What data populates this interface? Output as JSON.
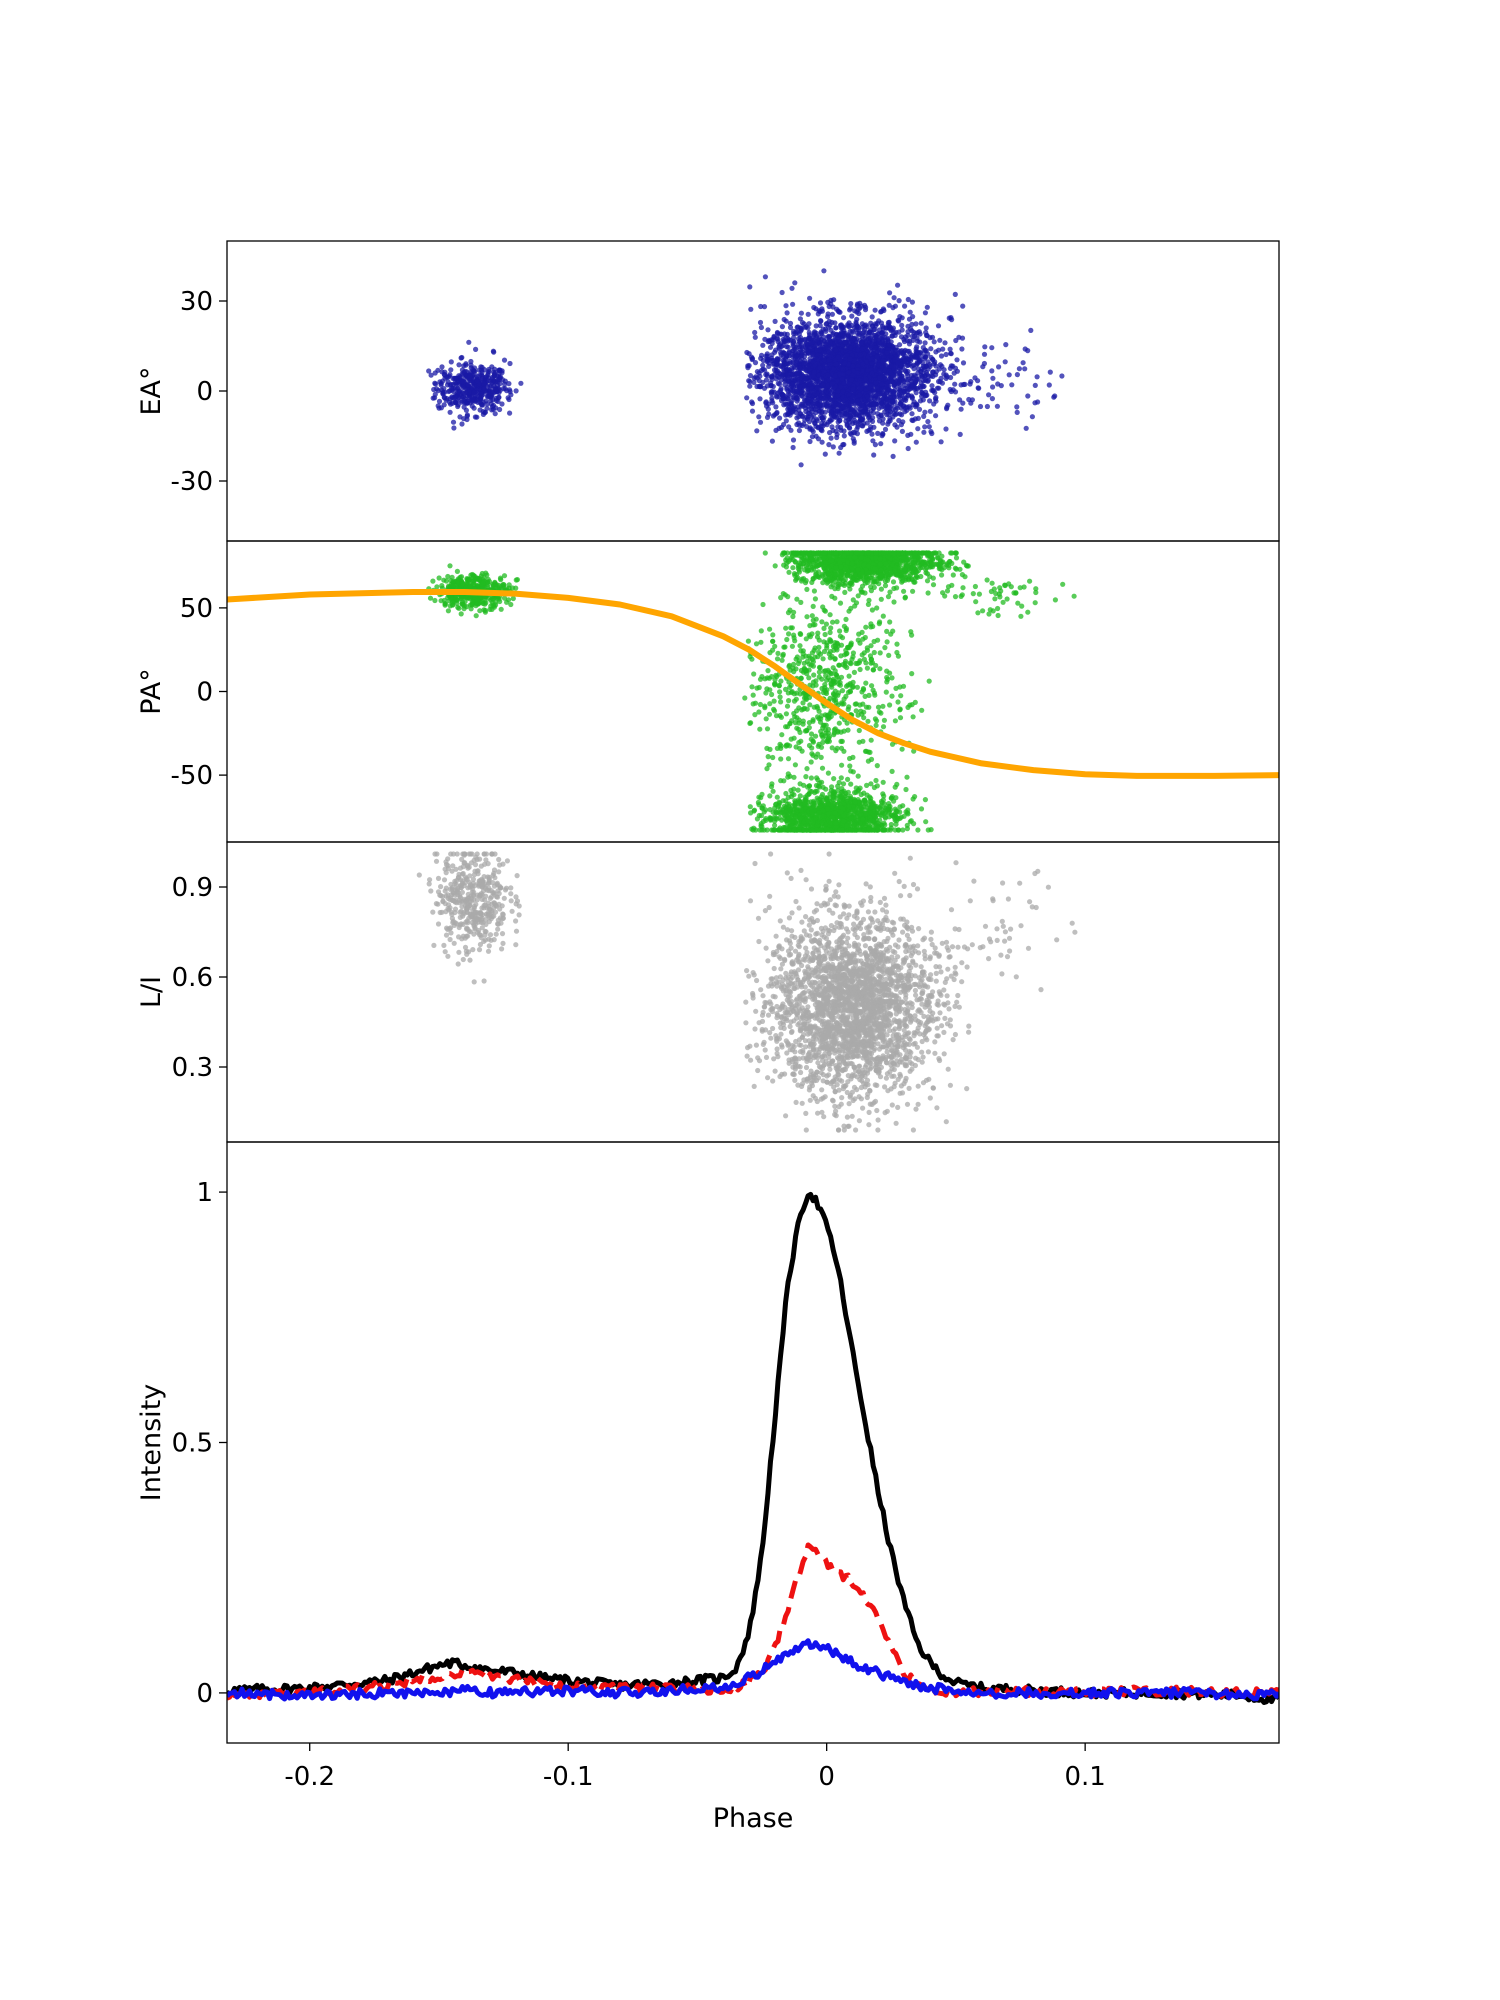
{
  "chart_data": [
    {
      "panel": "EA",
      "type": "scatter",
      "ylabel": "EA°",
      "xlim": [
        -0.232,
        0.175
      ],
      "ylim": [
        -50,
        50
      ],
      "yticks": [
        30,
        0,
        -30
      ],
      "ytick_labels": [
        "30",
        "0",
        "-30"
      ],
      "point_color": "#1a1aa6",
      "clusters": [
        {
          "x_range": [
            -0.158,
            -0.112
          ],
          "x_center": -0.137,
          "x_sd": 0.007,
          "y_center": 1,
          "y_sd": 4,
          "count": 420
        },
        {
          "x_range": [
            -0.032,
            0.06
          ],
          "x_center": 0.008,
          "x_sd": 0.016,
          "y_center": 6,
          "y_sd": 9,
          "count": 3200
        },
        {
          "x_range": [
            0.04,
            0.098
          ],
          "x_center": 0.065,
          "x_sd": 0.015,
          "y_center": 6,
          "y_sd": 8,
          "count": 60
        }
      ]
    },
    {
      "panel": "PA",
      "type": "scatter",
      "ylabel": "PA°",
      "xlim": [
        -0.232,
        0.175
      ],
      "ylim": [
        -90,
        90
      ],
      "yticks": [
        50,
        0,
        -50
      ],
      "ytick_labels": [
        "50",
        "0",
        "-50"
      ],
      "point_color": "#22bb22",
      "clusters": [
        {
          "x_range": [
            -0.158,
            -0.112
          ],
          "x_center": -0.137,
          "x_sd": 0.007,
          "y_center": 60,
          "y_sd": 5,
          "count": 420
        },
        {
          "x_range": [
            -0.018,
            0.055
          ],
          "x_center": 0.015,
          "x_sd": 0.014,
          "y_center": 78,
          "y_sd": 7,
          "count": 1400
        },
        {
          "x_range": [
            -0.03,
            0.048
          ],
          "x_center": 0.002,
          "x_sd": 0.013,
          "y_center": -75,
          "y_sd": 8,
          "count": 1200
        },
        {
          "x_range": [
            -0.032,
            0.04
          ],
          "x_center": 0.0,
          "x_sd": 0.016,
          "y_center": 0,
          "y_sd": 30,
          "count": 700
        },
        {
          "x_range": [
            0.04,
            0.096
          ],
          "x_center": 0.065,
          "x_sd": 0.015,
          "y_center": 58,
          "y_sd": 6,
          "count": 50
        }
      ],
      "fit_curve": {
        "name": "",
        "color": "#ffa500",
        "x": [
          -0.232,
          -0.2,
          -0.16,
          -0.14,
          -0.12,
          -0.1,
          -0.08,
          -0.06,
          -0.04,
          -0.03,
          -0.02,
          -0.01,
          0,
          0.01,
          0.02,
          0.03,
          0.04,
          0.06,
          0.08,
          0.1,
          0.12,
          0.15,
          0.175
        ],
        "y": [
          55,
          58,
          59.5,
          59.5,
          58.5,
          56,
          52,
          45,
          33,
          25,
          15,
          4,
          -7,
          -17,
          -25,
          -31,
          -36,
          -43,
          -47,
          -49.5,
          -50.5,
          -50.5,
          -50
        ]
      }
    },
    {
      "panel": "L/I",
      "type": "scatter",
      "ylabel": "L/I",
      "xlim": [
        -0.232,
        0.175
      ],
      "ylim": [
        0.05,
        1.05
      ],
      "yticks": [
        0.9,
        0.6,
        0.3
      ],
      "ytick_labels": [
        "0.9",
        "0.6",
        "0.3"
      ],
      "point_color": "#aaaaaa",
      "clusters": [
        {
          "x_range": [
            -0.158,
            -0.112
          ],
          "x_center": -0.137,
          "x_sd": 0.007,
          "y_center": 0.86,
          "y_sd": 0.09,
          "count": 420
        },
        {
          "x_range": [
            -0.032,
            0.055
          ],
          "x_center": 0.01,
          "x_sd": 0.016,
          "y_center": 0.5,
          "y_sd": 0.15,
          "count": 2600
        },
        {
          "x_range": [
            0.04,
            0.098
          ],
          "x_center": 0.065,
          "x_sd": 0.015,
          "y_center": 0.75,
          "y_sd": 0.12,
          "count": 50
        }
      ]
    },
    {
      "panel": "Intensity",
      "type": "line",
      "ylabel": "Intensity",
      "xlabel": "Phase",
      "xlim": [
        -0.232,
        0.175
      ],
      "ylim": [
        -0.1,
        1.1
      ],
      "yticks": [
        1,
        0.5,
        0
      ],
      "ytick_labels": [
        "1",
        "0.5",
        "0"
      ],
      "xticks": [
        -0.2,
        -0.1,
        0,
        0.1
      ],
      "xtick_labels": [
        "-0.2",
        "-0.1",
        "0",
        "0.1"
      ],
      "series": [
        {
          "color": "#000000",
          "dash": "solid",
          "x": [
            -0.232,
            -0.2,
            -0.17,
            -0.16,
            -0.15,
            -0.145,
            -0.14,
            -0.13,
            -0.12,
            -0.11,
            -0.1,
            -0.08,
            -0.06,
            -0.05,
            -0.04,
            -0.035,
            -0.03,
            -0.025,
            -0.02,
            -0.015,
            -0.01,
            -0.007,
            -0.005,
            -0.002,
            0.002,
            0.005,
            0.01,
            0.015,
            0.02,
            0.025,
            0.03,
            0.035,
            0.04,
            0.045,
            0.05,
            0.06,
            0.08,
            0.1,
            0.13,
            0.16,
            0.175
          ],
          "y": [
            0.005,
            0.01,
            0.025,
            0.04,
            0.055,
            0.06,
            0.055,
            0.045,
            0.04,
            0.03,
            0.025,
            0.015,
            0.02,
            0.025,
            0.03,
            0.05,
            0.12,
            0.28,
            0.55,
            0.82,
            0.96,
            1.0,
            0.99,
            0.96,
            0.9,
            0.83,
            0.68,
            0.54,
            0.4,
            0.28,
            0.18,
            0.1,
            0.06,
            0.035,
            0.02,
            0.01,
            0.005,
            0.0,
            0.0,
            -0.005,
            -0.015
          ]
        },
        {
          "color": "#ee1111",
          "dash": "dashed",
          "x": [
            -0.232,
            -0.2,
            -0.17,
            -0.15,
            -0.14,
            -0.13,
            -0.12,
            -0.1,
            -0.08,
            -0.06,
            -0.04,
            -0.03,
            -0.025,
            -0.02,
            -0.015,
            -0.01,
            -0.007,
            -0.004,
            0.0,
            0.005,
            0.01,
            0.015,
            0.02,
            0.025,
            0.03,
            0.035,
            0.04,
            0.05,
            0.07,
            0.1,
            0.13,
            0.16,
            0.175
          ],
          "y": [
            -0.005,
            0.0,
            0.015,
            0.035,
            0.04,
            0.035,
            0.025,
            0.015,
            0.01,
            0.01,
            0.005,
            0.02,
            0.04,
            0.09,
            0.17,
            0.25,
            0.29,
            0.28,
            0.26,
            0.24,
            0.22,
            0.19,
            0.15,
            0.09,
            0.04,
            0.015,
            0.005,
            0.0,
            0.005,
            0.0,
            0.005,
            0.0,
            0.0
          ]
        },
        {
          "color": "#1111ee",
          "dash": "solid",
          "x": [
            -0.232,
            -0.2,
            -0.17,
            -0.15,
            -0.14,
            -0.13,
            -0.1,
            -0.08,
            -0.06,
            -0.04,
            -0.03,
            -0.02,
            -0.015,
            -0.01,
            -0.005,
            0.0,
            0.005,
            0.01,
            0.02,
            0.03,
            0.04,
            0.06,
            0.1,
            0.14,
            0.175
          ],
          "y": [
            0.0,
            -0.005,
            0.0,
            0.0,
            0.005,
            0.0,
            0.005,
            0.0,
            0.005,
            0.01,
            0.03,
            0.06,
            0.08,
            0.095,
            0.1,
            0.09,
            0.075,
            0.06,
            0.04,
            0.02,
            0.01,
            0.0,
            0.0,
            0.0,
            -0.005
          ]
        }
      ]
    }
  ]
}
